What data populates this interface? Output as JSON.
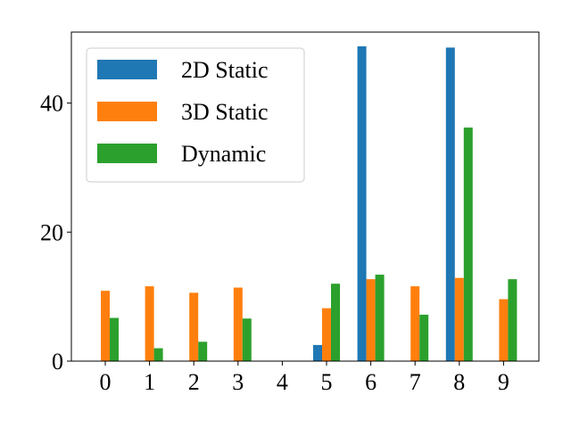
{
  "chart_data": {
    "type": "bar",
    "title": "",
    "xlabel": "",
    "ylabel": "",
    "categories": [
      "0",
      "1",
      "2",
      "3",
      "4",
      "5",
      "6",
      "7",
      "8",
      "9"
    ],
    "series": [
      {
        "name": "2D Static",
        "color": "#1f77b4",
        "values": [
          0,
          0,
          0,
          0,
          0,
          2.5,
          48.8,
          0,
          48.6,
          0
        ]
      },
      {
        "name": "3D Static",
        "color": "#ff7f0e",
        "values": [
          10.9,
          11.6,
          10.6,
          11.4,
          0,
          8.2,
          12.7,
          11.6,
          12.9,
          9.6
        ]
      },
      {
        "name": "Dynamic",
        "color": "#2ca02c",
        "values": [
          6.7,
          2.0,
          3.0,
          6.6,
          0,
          12.0,
          13.4,
          7.2,
          36.2,
          12.7
        ]
      }
    ],
    "ylim": [
      0,
      51
    ],
    "yticks": [
      0,
      20,
      40
    ],
    "grid": false,
    "legend_position": "top-left"
  }
}
